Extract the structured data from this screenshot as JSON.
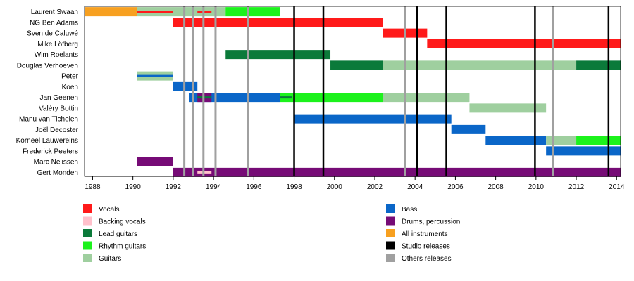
{
  "chart_data": {
    "type": "timeline",
    "x_range": [
      1987.6,
      2014.2
    ],
    "x_ticks": [
      "1988",
      "1990",
      "1992",
      "1994",
      "1996",
      "1998",
      "2000",
      "2002",
      "2004",
      "2006",
      "2008",
      "2010",
      "2012",
      "2014"
    ],
    "colors": {
      "vocals": "#ff1a1a",
      "backing_vocals": "#ffc0cb",
      "lead_guitars": "#0b7a3a",
      "rhythm_guitars": "#1cf21c",
      "guitars": "#9fcf9f",
      "bass": "#0a66c8",
      "drums": "#760b76",
      "all_instruments": "#f7a020",
      "studio": "#000000",
      "other": "#a0a0a0"
    },
    "members": [
      {
        "name": "Laurent Swaan",
        "roles": [
          {
            "role": "all_instruments",
            "start": 1987.6,
            "end": 1990.2
          },
          {
            "role": "guitars",
            "start": 1990.2,
            "end": 1994.6
          },
          {
            "role": "rhythm_guitars",
            "start": 1994.6,
            "end": 1997.3
          },
          {
            "role": "vocals",
            "start": 1990.2,
            "end": 1992.0,
            "thin": true
          },
          {
            "role": "vocals",
            "start": 1993.2,
            "end": 1993.9,
            "thin": true
          }
        ]
      },
      {
        "name": "NG Ben Adams",
        "roles": [
          {
            "role": "vocals",
            "start": 1992.0,
            "end": 2002.4
          }
        ]
      },
      {
        "name": "Sven de Caluwé",
        "roles": [
          {
            "role": "vocals",
            "start": 2002.4,
            "end": 2004.6
          }
        ]
      },
      {
        "name": "Mike Löfberg",
        "roles": [
          {
            "role": "vocals",
            "start": 2004.6,
            "end": 2014.2
          }
        ]
      },
      {
        "name": "Wim Roelants",
        "roles": [
          {
            "role": "lead_guitars",
            "start": 1994.6,
            "end": 1999.8
          }
        ]
      },
      {
        "name": "Douglas Verhoeven",
        "roles": [
          {
            "role": "lead_guitars",
            "start": 1999.8,
            "end": 2002.4
          },
          {
            "role": "guitars",
            "start": 2002.4,
            "end": 2012.0
          },
          {
            "role": "lead_guitars",
            "start": 2012.0,
            "end": 2014.2
          }
        ]
      },
      {
        "name": "Peter",
        "roles": [
          {
            "role": "guitars",
            "start": 1990.2,
            "end": 1992.0
          },
          {
            "role": "bass",
            "start": 1990.2,
            "end": 1992.0,
            "thin": true
          }
        ]
      },
      {
        "name": "Koen",
        "roles": [
          {
            "role": "bass",
            "start": 1992.0,
            "end": 1993.2
          }
        ]
      },
      {
        "name": "Jan Geenen",
        "roles": [
          {
            "role": "bass",
            "start": 1992.8,
            "end": 1997.3
          },
          {
            "role": "drums",
            "start": 1993.2,
            "end": 1993.9
          },
          {
            "role": "rhythm_guitars",
            "start": 1997.3,
            "end": 2002.4
          },
          {
            "role": "guitars",
            "start": 2002.4,
            "end": 2006.7
          },
          {
            "role": "lead_guitars",
            "start": 1993.2,
            "end": 1993.9,
            "thin": true
          },
          {
            "role": "lead_guitars",
            "start": 1997.3,
            "end": 1997.9,
            "thin": true
          }
        ]
      },
      {
        "name": "Valéry Bottin",
        "roles": [
          {
            "role": "guitars",
            "start": 2006.7,
            "end": 2010.5
          }
        ]
      },
      {
        "name": "Manu van Tichelen",
        "roles": [
          {
            "role": "bass",
            "start": 1998.0,
            "end": 2005.8
          }
        ]
      },
      {
        "name": "Joël Decoster",
        "roles": [
          {
            "role": "bass",
            "start": 2005.8,
            "end": 2007.5
          }
        ]
      },
      {
        "name": "Korneel Lauwereins",
        "roles": [
          {
            "role": "bass",
            "start": 2007.5,
            "end": 2010.5
          },
          {
            "role": "guitars",
            "start": 2010.5,
            "end": 2012.0
          },
          {
            "role": "rhythm_guitars",
            "start": 2012.0,
            "end": 2014.2
          }
        ]
      },
      {
        "name": "Frederick Peeters",
        "roles": [
          {
            "role": "bass",
            "start": 2010.5,
            "end": 2014.2
          }
        ]
      },
      {
        "name": "Marc Nelissen",
        "roles": [
          {
            "role": "drums",
            "start": 1990.2,
            "end": 1992.0
          }
        ]
      },
      {
        "name": "Gert Monden",
        "roles": [
          {
            "role": "drums",
            "start": 1992.0,
            "end": 2014.2
          },
          {
            "role": "backing_vocals",
            "start": 1993.2,
            "end": 1993.9,
            "thin": true
          }
        ]
      }
    ],
    "studio_releases": [
      1998.0,
      1999.45,
      2004.1,
      2005.55,
      2009.95,
      2013.6
    ],
    "other_releases": [
      1992.55,
      1993.0,
      1993.5,
      1994.1,
      1995.7,
      2003.5,
      2010.85
    ],
    "legend": {
      "left": [
        {
          "key": "vocals",
          "label": "Vocals"
        },
        {
          "key": "backing_vocals",
          "label": "Backing vocals"
        },
        {
          "key": "lead_guitars",
          "label": "Lead guitars"
        },
        {
          "key": "rhythm_guitars",
          "label": "Rhythm guitars"
        },
        {
          "key": "guitars",
          "label": "Guitars"
        }
      ],
      "right": [
        {
          "key": "bass",
          "label": "Bass"
        },
        {
          "key": "drums",
          "label": "Drums, percussion"
        },
        {
          "key": "all_instruments",
          "label": "All instruments"
        },
        {
          "key": "studio",
          "label": "Studio releases"
        },
        {
          "key": "other",
          "label": "Others releases"
        }
      ]
    }
  }
}
